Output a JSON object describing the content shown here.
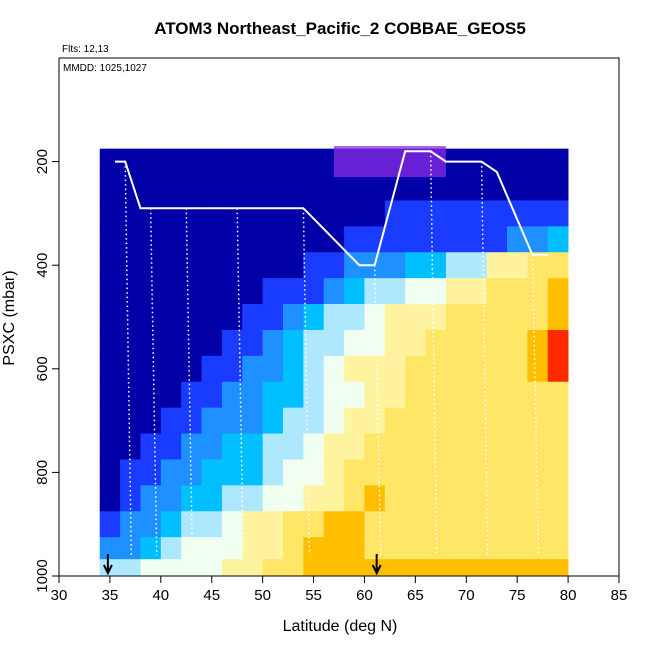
{
  "chart_data": {
    "type": "heatmap",
    "title": "ATOM3 Northeast_Pacific_2 COBBAE_GEOS5",
    "annotations": [
      "Flts: 12,13",
      "MMDD: 1025,1027"
    ],
    "xlabel": "Latitude (deg N)",
    "ylabel": "PSXC (mbar)",
    "xlim": [
      30,
      85
    ],
    "ylim": [
      1000,
      0
    ],
    "x_ticks": [
      30,
      35,
      40,
      45,
      50,
      55,
      60,
      65,
      70,
      75,
      80,
      85
    ],
    "y_ticks": [
      200,
      400,
      600,
      800,
      1000
    ],
    "grid": false,
    "legend": "none",
    "colors": {
      "darkblue": "#0000a6",
      "blue": "#1a3cff",
      "azure": "#1e90ff",
      "cyan": "#00bfff",
      "lightcyan": "#aee8ff",
      "pale": "#f0fff0",
      "lightyellow": "#fff3a0",
      "yellow": "#ffe666",
      "orange": "#ffbf00",
      "red": "#ff2a00",
      "darkred": "#b00000",
      "violet": "#8a2be2",
      "line": "#ffffff"
    },
    "level_key": "a=darkblue b=blue c=azure d=cyan e=lightcyan f=pale g=lightyellow h=yellow i=orange r=red",
    "x": [
      35,
      37,
      39,
      41,
      43,
      45,
      47,
      49,
      51,
      53,
      55,
      57,
      59,
      61,
      63,
      65,
      67,
      69,
      71,
      73,
      75,
      77,
      79
    ],
    "rows": [
      {
        "p": 200,
        "levels": "aaaaaaaaaaaaaaaaaaaaaaa"
      },
      {
        "p": 250,
        "levels": "aaaaaaaaaaaaaaaaaaaaaaa"
      },
      {
        "p": 300,
        "levels": "aaaaaaaaaaaaaabbbbbbbbb"
      },
      {
        "p": 350,
        "levels": "aaaaaaaaaaaabbbbbbbbccd"
      },
      {
        "p": 400,
        "levels": "aaaaaaaaaabbcccddeegghh"
      },
      {
        "p": 450,
        "levels": "aaaaaaaabbbcdeeffgghhhi"
      },
      {
        "p": 500,
        "levels": "aaaaaaabbcdeefggghhhhhi"
      },
      {
        "p": 550,
        "levels": "aaaaaabbcdeeffgghhhhhir"
      },
      {
        "p": 600,
        "levels": "aaaaabbccdefggghhhhhhir"
      },
      {
        "p": 650,
        "levels": "aaaabbccddeffgghhhhhhhh"
      },
      {
        "p": 700,
        "levels": "aaabbcccdeefgghhhhhhhhh"
      },
      {
        "p": 750,
        "levels": "aabbccddeefgghhhhhhhhhh"
      },
      {
        "p": 800,
        "levels": "abbccdddeffghhhhhhhhhhh"
      },
      {
        "p": 850,
        "levels": "abccddeeffgghihhhhhhhhh"
      },
      {
        "p": 900,
        "levels": "bccdeefgghhiihhhhhhhhhh"
      },
      {
        "p": 950,
        "levels": "ccdefffgghiiihhhhhhhhhh"
      },
      {
        "p": 985,
        "levels": "eeffffgghhiiiiiiiiiiiii"
      }
    ],
    "tropopause_line": [
      {
        "lat": 35.5,
        "p": 200
      },
      {
        "lat": 36.5,
        "p": 200
      },
      {
        "lat": 38.0,
        "p": 290
      },
      {
        "lat": 39.0,
        "p": 290
      },
      {
        "lat": 40.5,
        "p": 290
      },
      {
        "lat": 42.5,
        "p": 290
      },
      {
        "lat": 44.5,
        "p": 290
      },
      {
        "lat": 47.5,
        "p": 290
      },
      {
        "lat": 53.0,
        "p": 290
      },
      {
        "lat": 54.0,
        "p": 290
      },
      {
        "lat": 59.5,
        "p": 400
      },
      {
        "lat": 61.0,
        "p": 400
      },
      {
        "lat": 64.0,
        "p": 180
      },
      {
        "lat": 66.5,
        "p": 180
      },
      {
        "lat": 68.0,
        "p": 200
      },
      {
        "lat": 71.5,
        "p": 200
      },
      {
        "lat": 73.0,
        "p": 220
      },
      {
        "lat": 76.5,
        "p": 380
      },
      {
        "lat": 78.0,
        "p": 380
      }
    ],
    "flight_markers": [
      34.8,
      61.2
    ],
    "violet_cap": {
      "lat": [
        57,
        68
      ],
      "p": [
        170,
        230
      ]
    }
  }
}
